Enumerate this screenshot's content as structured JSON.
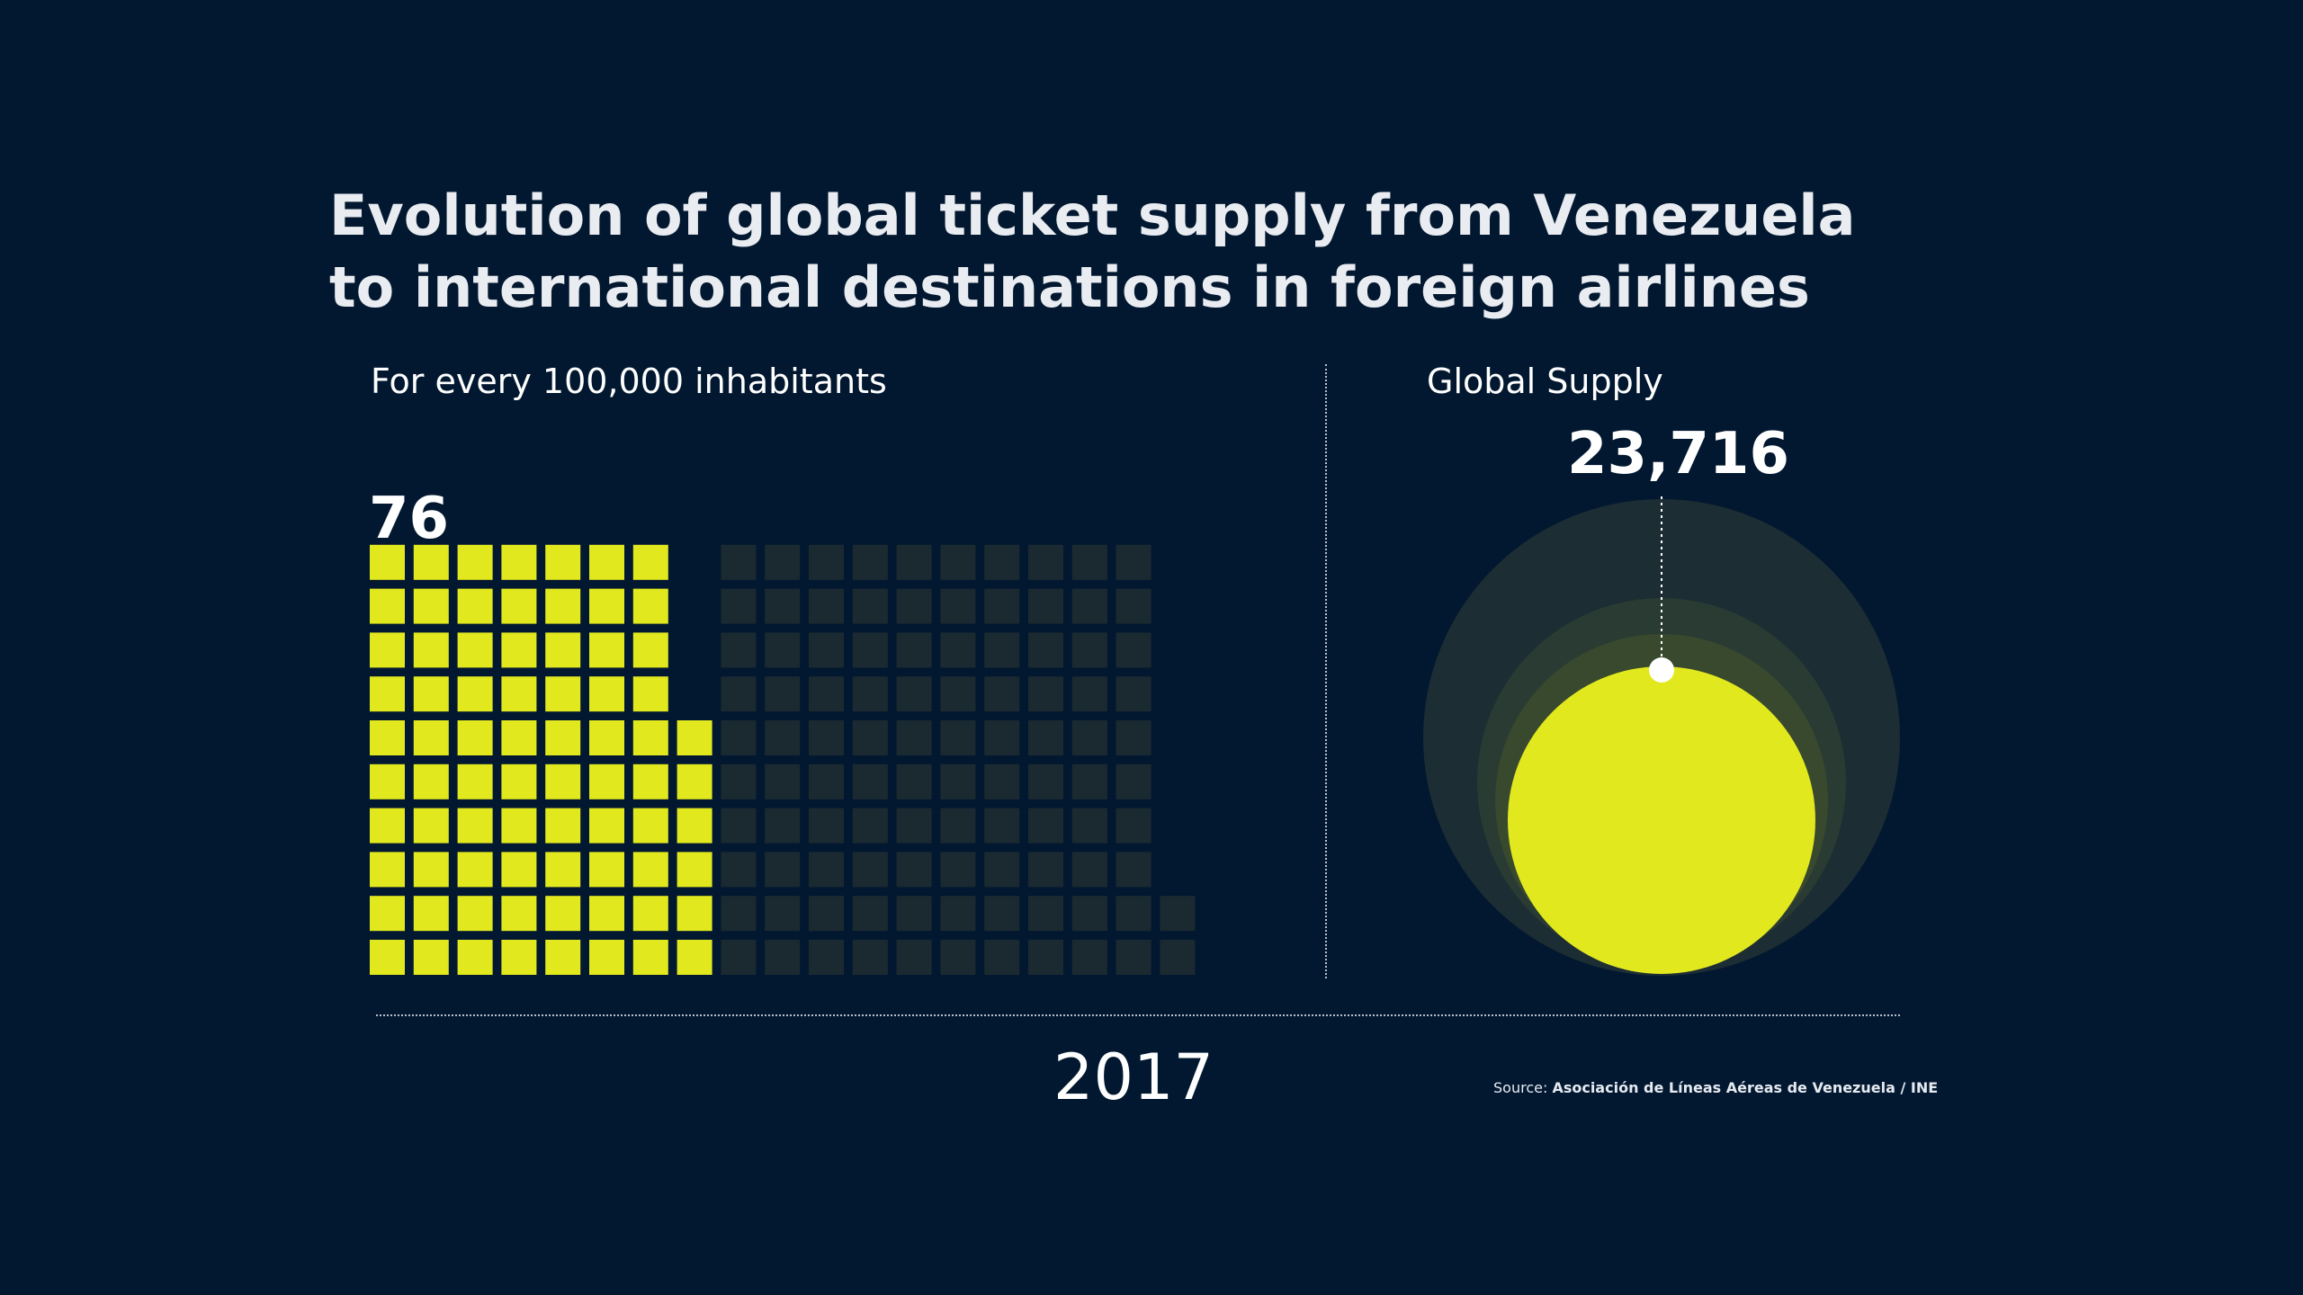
{
  "title": {
    "line1": "Evolution of global ticket supply from Venezuela",
    "line2": "to international destinations in foreign airlines"
  },
  "left_panel": {
    "subtitle": "For every 100,000 inhabitants",
    "value_label": "76"
  },
  "right_panel": {
    "subtitle": "Global Supply",
    "value_label": "23,716"
  },
  "year": "2017",
  "source": {
    "label": "Source:",
    "text": "Asociación de Líneas Aéreas de Venezuela / INE"
  },
  "colors": {
    "background": "#021830",
    "highlight": "#e2e81e",
    "inactive_square": "#1b2a31",
    "circle_outer": "#1c2d33",
    "circle_mid": "#2a3b33",
    "circle_inner": "#38492e",
    "text": "#ffffff",
    "divider": "#b7c0cc"
  },
  "chart_data": [
    {
      "type": "waffle",
      "title": "For every 100,000 inhabitants",
      "year": "2017",
      "highlighted_value": 76,
      "column_heights": [
        10,
        10,
        10,
        10,
        10,
        10,
        10,
        6,
        10,
        10,
        10,
        10,
        10,
        10,
        10,
        10,
        10,
        10,
        2
      ],
      "highlighted_column_heights": [
        10,
        10,
        10,
        10,
        10,
        10,
        10,
        6,
        0,
        0,
        0,
        0,
        0,
        0,
        0,
        0,
        0,
        0,
        0
      ]
    },
    {
      "type": "proportional_circles",
      "title": "Global Supply",
      "year": "2017",
      "highlighted_value": 23716,
      "highlighted_label": "23,716"
    }
  ]
}
